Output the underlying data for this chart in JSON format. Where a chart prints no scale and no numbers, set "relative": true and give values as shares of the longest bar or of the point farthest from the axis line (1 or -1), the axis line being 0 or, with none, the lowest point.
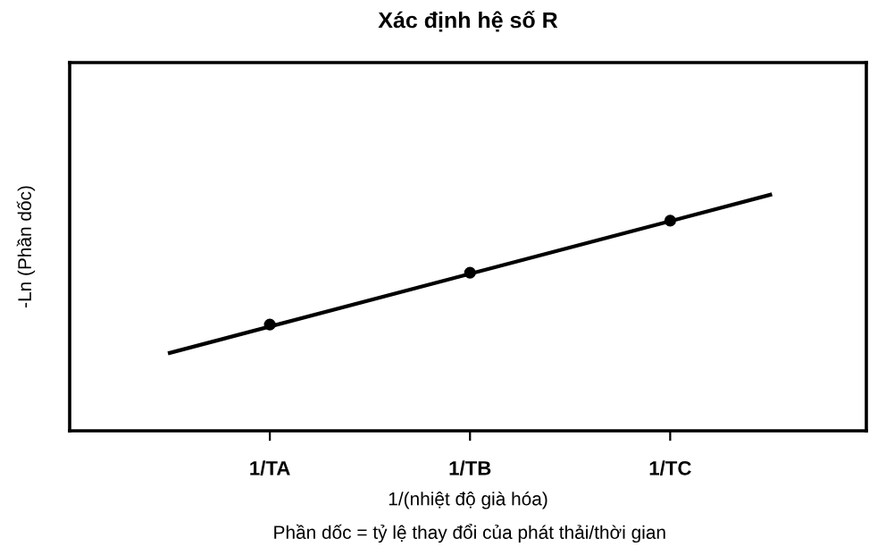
{
  "chart_data": {
    "type": "line",
    "title": "Xác định hệ số R",
    "xlabel": "1/(nhiệt độ già hóa)",
    "ylabel": "-Ln (Phần dốc)",
    "annotations": [
      "Phần dốc = tỷ lệ thay đổi của phát thải/thời gian"
    ],
    "categories": [
      null,
      "1/TA",
      null,
      "1/TB",
      null,
      "1/TC",
      null
    ],
    "relative": true,
    "grid": false,
    "legend": false,
    "series": [
      {
        "color": "#000000",
        "values": [
          0.33,
          null,
          null,
          null,
          null,
          null,
          1.0
        ],
        "line_style": "solid",
        "marker": "none"
      },
      {
        "type": "scatter",
        "marker": "circle",
        "color": "#000000",
        "values": [
          null,
          0.45,
          null,
          0.67,
          null,
          0.89,
          null
        ]
      }
    ]
  }
}
